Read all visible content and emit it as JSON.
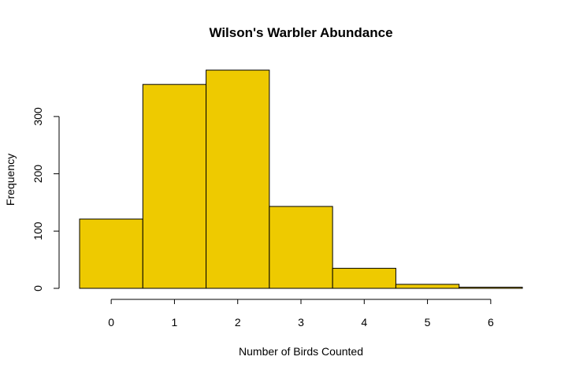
{
  "chart_data": {
    "type": "bar",
    "title": "Wilson's Warbler Abundance",
    "xlabel": "Number of Birds Counted",
    "ylabel": "Frequency",
    "categories": [
      "0",
      "1",
      "2",
      "3",
      "4",
      "5",
      "6"
    ],
    "values": [
      121,
      356,
      381,
      143,
      35,
      7,
      2
    ],
    "x_ticks": [
      0,
      1,
      2,
      3,
      4,
      5,
      6
    ],
    "y_ticks": [
      0,
      100,
      200,
      300
    ],
    "xlim": [
      -0.5,
      6.5
    ],
    "ylim": [
      0,
      381
    ],
    "bar_color": "#EECA00",
    "grid": false,
    "legend": "none"
  }
}
